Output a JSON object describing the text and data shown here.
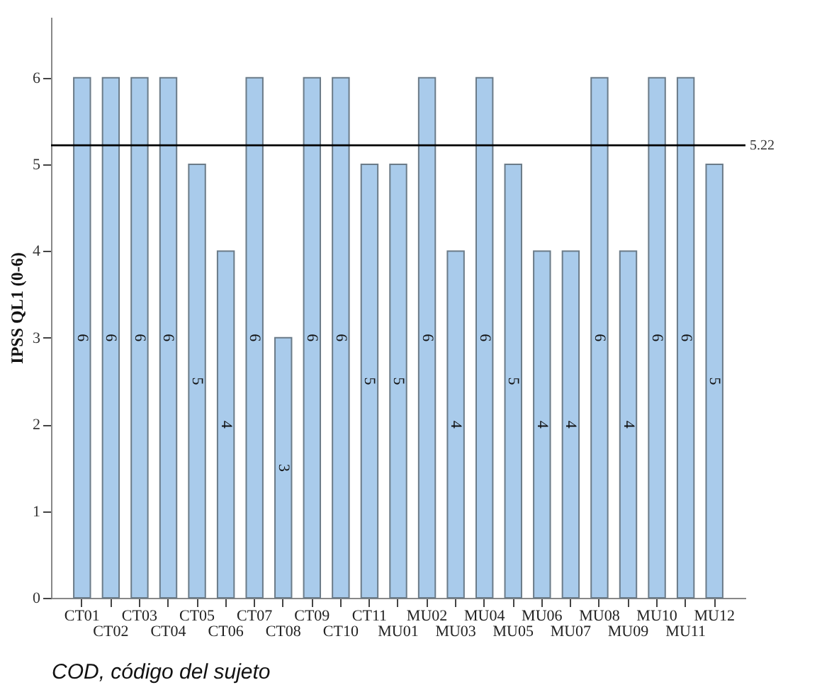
{
  "chart_data": {
    "type": "bar",
    "categories": [
      "CT01",
      "CT02",
      "CT03",
      "CT04",
      "CT05",
      "CT06",
      "CT07",
      "CT08",
      "CT09",
      "CT10",
      "CT11",
      "MU01",
      "MU02",
      "MU03",
      "MU04",
      "MU05",
      "MU06",
      "MU07",
      "MU08",
      "MU09",
      "MU10",
      "MU11",
      "MU12"
    ],
    "values": [
      6,
      6,
      6,
      6,
      5,
      4,
      6,
      3,
      6,
      6,
      5,
      5,
      6,
      4,
      6,
      5,
      4,
      4,
      6,
      4,
      6,
      6,
      5
    ],
    "color": "#a9cbeb",
    "xlabel": "COD, código del sujeto",
    "ylabel": "IPSS QL1 (0-6)",
    "ylim": [
      0,
      6.7
    ],
    "yticks": [
      0,
      1,
      2,
      3,
      4,
      5,
      6
    ],
    "ref_lines": [
      {
        "axis": "y",
        "value": 5.22,
        "label": "5.22",
        "color": "#000000"
      }
    ],
    "data_labels": true,
    "grid": false
  }
}
